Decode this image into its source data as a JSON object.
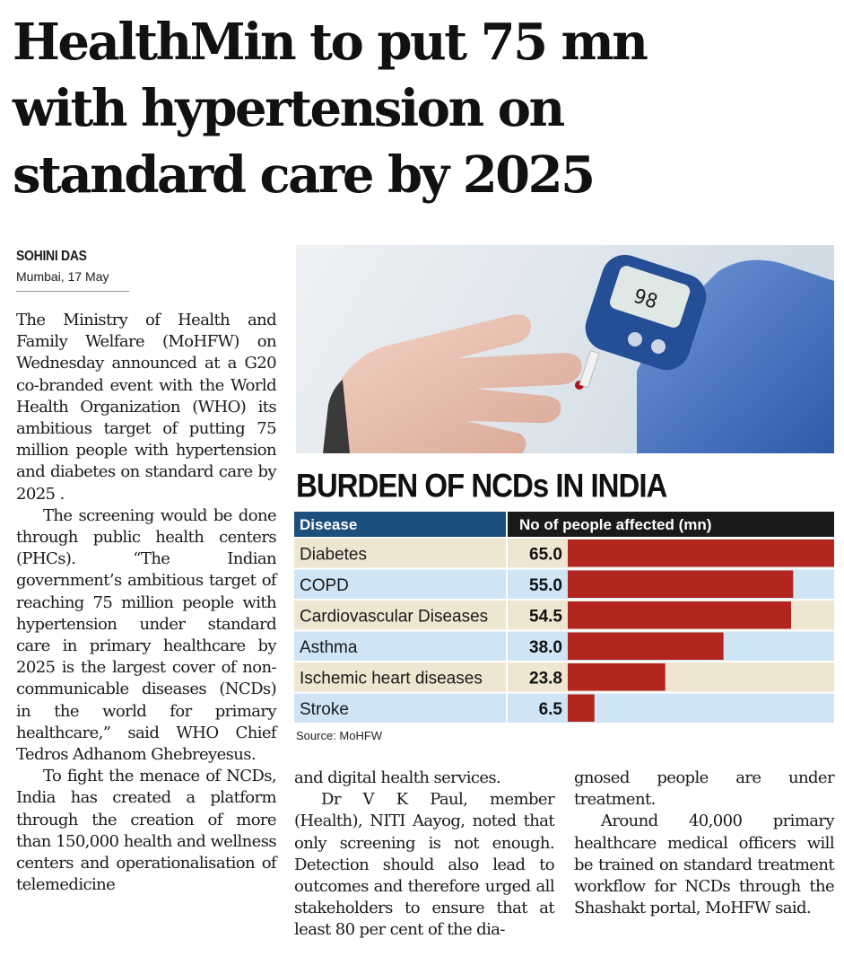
{
  "headline": {
    "lines": [
      "HealthMin to put 75 mn",
      "with hypertension on",
      "standard care by 2025"
    ]
  },
  "byline": {
    "author": "SOHINI DAS",
    "dateline": "Mumbai, 17 May"
  },
  "article": {
    "col1": [
      "The Ministry of Health and Family Welfare (MoHFW) on Wednesday announced at a G20 co-branded event with the World Health Organization (WHO) its ambitious target of putting 75 million people with hypertension and diabetes on standard care by 2025 .",
      "The screening would be done through public health centers (PHCs). “The Indian government’s ambitious target of reaching 75 million people with hypertension under standard care in primary healthcare by 2025 is the largest cover of non-communicable diseases (NCDs) in the world for primary healthcare,” said WHO Chief Tedros Adhanom Ghebreyesus.",
      "To fight the menace of NCDs, India has created a platform through the creation of more than 150,000 health and wellness centers and operationalisation of telemedicine"
    ],
    "col2": [
      "and digital health services.",
      "Dr V K Paul, member (Health), NITI Aayog, noted that only screening is not enough. Detection should also lead to outcomes and therefore urged all stakeholders to ensure that at least 80 per cent of the dia-"
    ],
    "col3": [
      "gnosed people are under treatment.",
      "Around 40,000 primary healthcare medical officers will be trained on standard treatment workflow for NCDs through the Shashakt portal, MoHFW said."
    ]
  },
  "chart_data": {
    "type": "table",
    "title": "BURDEN OF NCDs IN INDIA",
    "columns": [
      "Disease",
      "No of people affected (mn)"
    ],
    "categories": [
      "Diabetes",
      "COPD",
      "Cardiovascular Diseases",
      "Asthma",
      "Ischemic heart diseases",
      "Stroke"
    ],
    "labels": [
      "65.0",
      "55.0",
      "54.5",
      "38.0",
      "23.8",
      "6.5"
    ],
    "values": [
      65.0,
      55.0,
      54.5,
      38.0,
      23.8,
      6.5
    ],
    "xlim": [
      0,
      65
    ],
    "source": "Source: MoHFW",
    "colors": {
      "header_left": "#1c4e7e",
      "header_right": "#1a1a1a",
      "bar": "#b3251f",
      "row_beige": "#efe6d2",
      "row_blue": "#cfe4f4"
    }
  }
}
